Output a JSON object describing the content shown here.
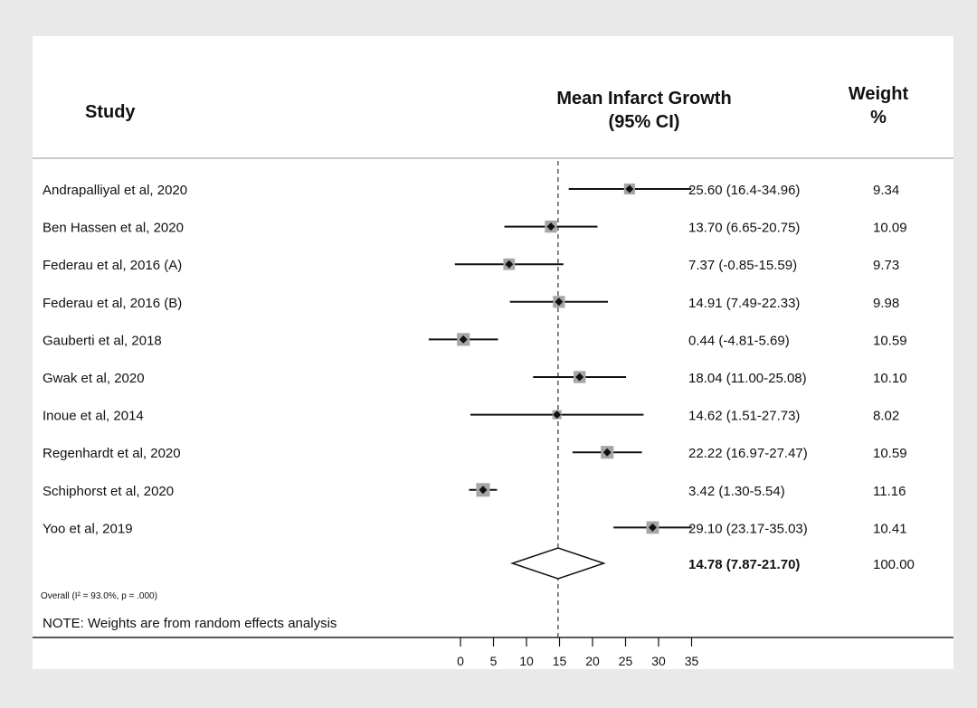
{
  "header": {
    "study_label": "Study",
    "effect_label_line1": "Mean Infarct Growth",
    "effect_label_line2": "(95% CI)",
    "weight_label_line1": "Weight",
    "weight_label_line2": "%"
  },
  "chart_data": {
    "type": "forest",
    "studies": [
      {
        "name": "Andrapalliyal et al, 2020",
        "mean": 25.6,
        "lower": 16.4,
        "upper": 34.96,
        "ci_text": "25.60 (16.4-34.96)",
        "weight": "9.34"
      },
      {
        "name": "Ben Hassen et al, 2020",
        "mean": 13.7,
        "lower": 6.65,
        "upper": 20.75,
        "ci_text": "13.70 (6.65-20.75)",
        "weight": "10.09"
      },
      {
        "name": "Federau et al, 2016 (A)",
        "mean": 7.37,
        "lower": -0.85,
        "upper": 15.59,
        "ci_text": "7.37 (-0.85-15.59)",
        "weight": "9.73"
      },
      {
        "name": "Federau et al, 2016 (B)",
        "mean": 14.91,
        "lower": 7.49,
        "upper": 22.33,
        "ci_text": "14.91 (7.49-22.33)",
        "weight": "9.98"
      },
      {
        "name": "Gauberti et al, 2018",
        "mean": 0.44,
        "lower": -4.81,
        "upper": 5.69,
        "ci_text": "0.44 (-4.81-5.69)",
        "weight": "10.59"
      },
      {
        "name": "Gwak et al, 2020",
        "mean": 18.04,
        "lower": 11.0,
        "upper": 25.08,
        "ci_text": "18.04 (11.00-25.08)",
        "weight": "10.10"
      },
      {
        "name": "Inoue et al, 2014",
        "mean": 14.62,
        "lower": 1.51,
        "upper": 27.73,
        "ci_text": "14.62 (1.51-27.73)",
        "weight": "8.02"
      },
      {
        "name": "Regenhardt et al, 2020",
        "mean": 22.22,
        "lower": 16.97,
        "upper": 27.47,
        "ci_text": "22.22 (16.97-27.47)",
        "weight": "10.59"
      },
      {
        "name": "Schiphorst et al, 2020",
        "mean": 3.42,
        "lower": 1.3,
        "upper": 5.54,
        "ci_text": "3.42 (1.30-5.54)",
        "weight": "11.16"
      },
      {
        "name": "Yoo et al, 2019",
        "mean": 29.1,
        "lower": 23.17,
        "upper": 35.03,
        "ci_text": "29.10 (23.17-35.03)",
        "weight": "10.41"
      }
    ],
    "overall": {
      "mean": 14.78,
      "lower": 7.87,
      "upper": 21.7,
      "ci_text": "14.78 (7.87-21.70)",
      "weight": "100.00"
    },
    "overall_label": "Overall",
    "heterogeneity": "(I² = 93.0%, p = .000)",
    "note": "NOTE: Weights are from random effects analysis",
    "x_ticks": [
      0,
      5,
      10,
      15,
      20,
      25,
      30,
      35
    ],
    "xlim": [
      0,
      35
    ],
    "reference_line": 14.78
  }
}
